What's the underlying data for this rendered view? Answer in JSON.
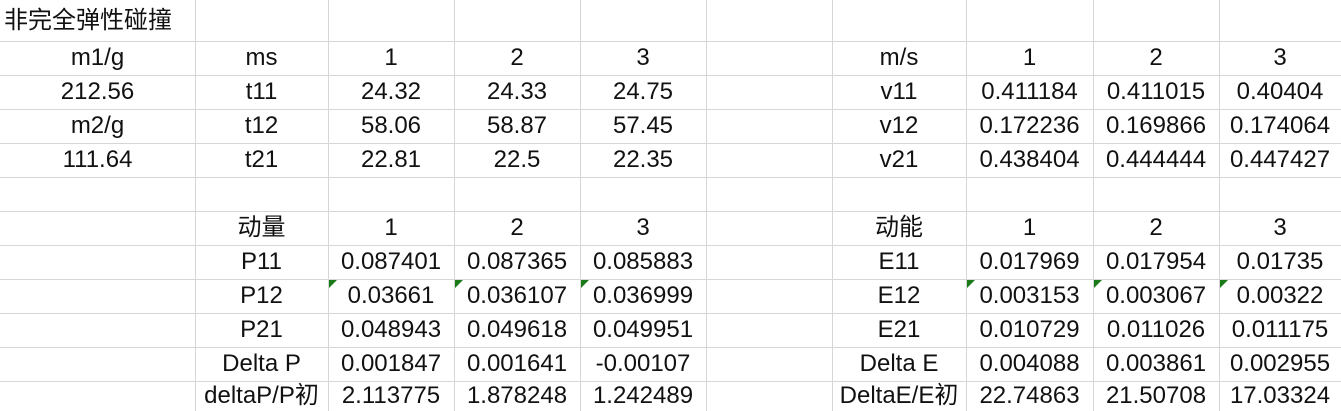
{
  "title": "非完全弹性碰撞",
  "masses": {
    "m1_label": "m1/g",
    "m1_value": "212.56",
    "m2_label": "m2/g",
    "m2_value": "111.64"
  },
  "times": {
    "unit": "ms",
    "runs": [
      "1",
      "2",
      "3"
    ],
    "rows": [
      {
        "label": "t11",
        "values": [
          "24.32",
          "24.33",
          "24.75"
        ]
      },
      {
        "label": "t12",
        "values": [
          "58.06",
          "58.87",
          "57.45"
        ]
      },
      {
        "label": "t21",
        "values": [
          "22.81",
          "22.5",
          "22.35"
        ]
      }
    ]
  },
  "velocities": {
    "unit": "m/s",
    "runs": [
      "1",
      "2",
      "3"
    ],
    "rows": [
      {
        "label": "v11",
        "values": [
          "0.411184",
          "0.411015",
          "0.40404"
        ]
      },
      {
        "label": "v12",
        "values": [
          "0.172236",
          "0.169866",
          "0.174064"
        ]
      },
      {
        "label": "v21",
        "values": [
          "0.438404",
          "0.444444",
          "0.447427"
        ]
      }
    ]
  },
  "momentum": {
    "header": "动量",
    "runs": [
      "1",
      "2",
      "3"
    ],
    "rows": [
      {
        "label": "P11",
        "values": [
          "0.087401",
          "0.087365",
          "0.085883"
        ]
      },
      {
        "label": "P12",
        "values": [
          "0.03661",
          "0.036107",
          "0.036999"
        ]
      },
      {
        "label": "P21",
        "values": [
          "0.048943",
          "0.049618",
          "0.049951"
        ]
      },
      {
        "label": "Delta P",
        "values": [
          "0.001847",
          "0.001641",
          "-0.00107"
        ]
      },
      {
        "label": "deltaP/P初",
        "values": [
          "2.113775",
          "1.878248",
          "1.242489"
        ]
      }
    ]
  },
  "energy": {
    "header": "动能",
    "runs": [
      "1",
      "2",
      "3"
    ],
    "rows": [
      {
        "label": "E11",
        "values": [
          "0.017969",
          "0.017954",
          "0.01735"
        ]
      },
      {
        "label": "E12",
        "values": [
          "0.003153",
          "0.003067",
          "0.00322"
        ]
      },
      {
        "label": "E21",
        "values": [
          "0.010729",
          "0.011026",
          "0.011175"
        ]
      },
      {
        "label": "Delta E",
        "values": [
          "0.004088",
          "0.003861",
          "0.002955"
        ]
      },
      {
        "label": "DeltaE/E初",
        "values": [
          "22.74863",
          "21.50708",
          "17.03324"
        ]
      }
    ]
  },
  "colors": {
    "gridline": "#d6d6d6",
    "error_flag": "#1a7a1a"
  }
}
